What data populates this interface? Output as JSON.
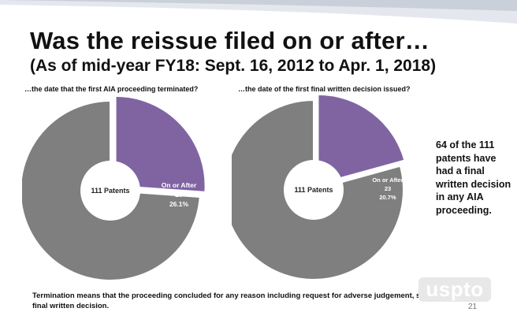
{
  "title": "Was the reissue filed on or after…",
  "subtitle": "(As of mid-year FY18: Sept. 16, 2012 to Apr. 1, 2018)",
  "side_note": "64 of the 111 patents have had a final written decision in any AIA proceeding.",
  "footnote": "Termination means that the proceeding concluded for any reason including request for adverse judgement, settlement, or final written decision.",
  "logo_text": "uspto",
  "page_number": "21",
  "colors": {
    "highlight": "#8064a2",
    "base": "#7f7f7f",
    "band": "#dfe3ea"
  },
  "chart_data": [
    {
      "type": "pie",
      "title": "…the date that the first AIA proceeding terminated?",
      "center_label": "111 Patents",
      "total": 111,
      "slices": [
        {
          "label": "On or After",
          "value": 29,
          "percent": "26.1%"
        },
        {
          "label": "",
          "value": 82
        }
      ]
    },
    {
      "type": "pie",
      "title": "…the date of the first final written decision issued?",
      "center_label": "111 Patents",
      "total": 111,
      "slices": [
        {
          "label": "On or After",
          "value": 23,
          "percent": "20.7%"
        },
        {
          "label": "",
          "value": 88
        }
      ]
    }
  ]
}
